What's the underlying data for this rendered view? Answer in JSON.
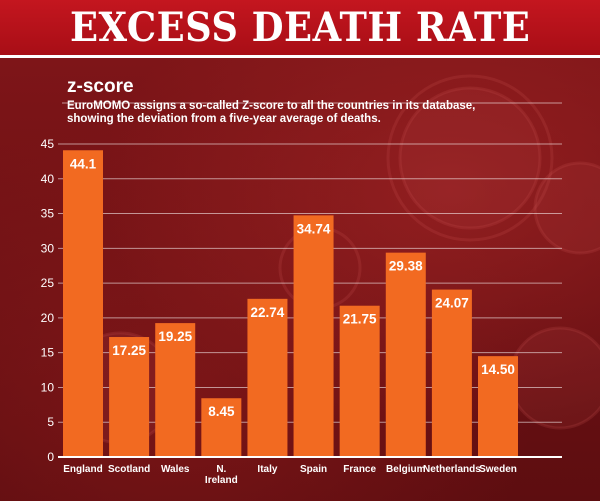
{
  "banner": {
    "title": "EXCESS DEATH RATE"
  },
  "colors": {
    "banner": "#c4161f",
    "panel": "#6e1114",
    "bar": "#f26a21",
    "text": "#ffffff"
  },
  "chart_data": {
    "type": "bar",
    "title": "z-score",
    "subtitle": "EuroMOMO assigns a so-called Z-score to all the countries in its database, showing the deviation from a five-year average of deaths.",
    "subtitle_lines": [
      "EuroMOMO assigns a so-called Z-score to all the countries in its database,",
      "showing the deviation from a five-year average of deaths."
    ],
    "categories": [
      "England",
      "Scotland",
      "Wales",
      "N. Ireland",
      "Italy",
      "Spain",
      "France",
      "Belgium",
      "Netherlands",
      "Sweden"
    ],
    "values": [
      44.1,
      17.25,
      19.25,
      8.45,
      22.74,
      34.74,
      21.75,
      29.38,
      24.07,
      14.5
    ],
    "value_labels": [
      "44.1",
      "17.25",
      "19.25",
      "8.45",
      "22.74",
      "34.74",
      "21.75",
      "29.38",
      "24.07",
      "14.50"
    ],
    "yticks": [
      0,
      5,
      10,
      15,
      20,
      25,
      30,
      35,
      40,
      45
    ],
    "ylim": [
      0,
      45
    ],
    "grid": true,
    "xlabel": "",
    "ylabel": ""
  }
}
